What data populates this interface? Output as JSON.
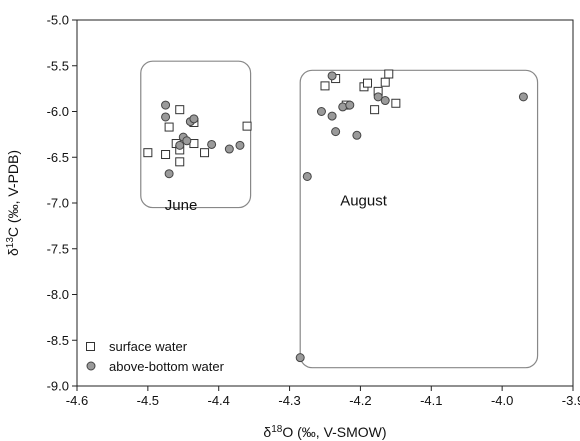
{
  "chart_data": {
    "type": "scatter",
    "xlabel": "δ¹⁸O (‰, V-SMOW)",
    "xlabel_parts": {
      "prefix": "δ",
      "sup": "18",
      "suffix": "O (‰, V-SMOW)"
    },
    "ylabel": "δ¹³C (‰, V-PDB)",
    "ylabel_parts": {
      "prefix": "δ",
      "sup": "13",
      "suffix": "C (‰, V-PDB)"
    },
    "xlim": [
      -4.6,
      -3.9
    ],
    "ylim": [
      -9.0,
      -5.0
    ],
    "xticks": [
      "-4.6",
      "-4.5",
      "-4.4",
      "-4.3",
      "-4.2",
      "-4.1",
      "-4.0",
      "-3.9"
    ],
    "yticks": [
      "-5.0",
      "-5.5",
      "-6.0",
      "-6.5",
      "-7.0",
      "-7.5",
      "-8.0",
      "-8.5",
      "-9.0"
    ],
    "grid": false,
    "legend_position": "bottom-left",
    "groups": [
      {
        "label": "June",
        "x_range": [
          -4.51,
          -4.355
        ],
        "y_range": [
          -7.05,
          -5.45
        ]
      },
      {
        "label": "August",
        "x_range": [
          -4.285,
          -3.95
        ],
        "y_range": [
          -8.8,
          -5.55
        ]
      }
    ],
    "series": [
      {
        "name": "surface water",
        "marker": "square",
        "color": "#ffffff",
        "points": [
          [
            -4.5,
            -6.45
          ],
          [
            -4.475,
            -6.47
          ],
          [
            -4.47,
            -6.17
          ],
          [
            -4.46,
            -6.35
          ],
          [
            -4.455,
            -5.98
          ],
          [
            -4.455,
            -6.42
          ],
          [
            -4.455,
            -6.55
          ],
          [
            -4.435,
            -6.12
          ],
          [
            -4.435,
            -6.35
          ],
          [
            -4.42,
            -6.45
          ],
          [
            -4.36,
            -6.16
          ],
          [
            -4.25,
            -5.72
          ],
          [
            -4.235,
            -5.64
          ],
          [
            -4.22,
            -5.93
          ],
          [
            -4.195,
            -5.73
          ],
          [
            -4.19,
            -5.69
          ],
          [
            -4.18,
            -5.98
          ],
          [
            -4.175,
            -5.78
          ],
          [
            -4.165,
            -5.68
          ],
          [
            -4.16,
            -5.59
          ],
          [
            -4.15,
            -5.91
          ]
        ]
      },
      {
        "name": "above-bottom water",
        "marker": "circle",
        "color": "#9a9a9a",
        "points": [
          [
            -4.475,
            -5.93
          ],
          [
            -4.475,
            -6.06
          ],
          [
            -4.47,
            -6.68
          ],
          [
            -4.455,
            -6.37
          ],
          [
            -4.45,
            -6.28
          ],
          [
            -4.445,
            -6.32
          ],
          [
            -4.44,
            -6.11
          ],
          [
            -4.435,
            -6.08
          ],
          [
            -4.41,
            -6.36
          ],
          [
            -4.385,
            -6.41
          ],
          [
            -4.37,
            -6.37
          ],
          [
            -4.285,
            -8.69
          ],
          [
            -4.275,
            -6.71
          ],
          [
            -4.255,
            -6.0
          ],
          [
            -4.24,
            -6.05
          ],
          [
            -4.24,
            -5.61
          ],
          [
            -4.235,
            -6.22
          ],
          [
            -4.225,
            -5.95
          ],
          [
            -4.215,
            -5.93
          ],
          [
            -4.205,
            -6.26
          ],
          [
            -4.175,
            -5.84
          ],
          [
            -4.165,
            -5.88
          ],
          [
            -3.97,
            -5.84
          ]
        ]
      }
    ]
  }
}
